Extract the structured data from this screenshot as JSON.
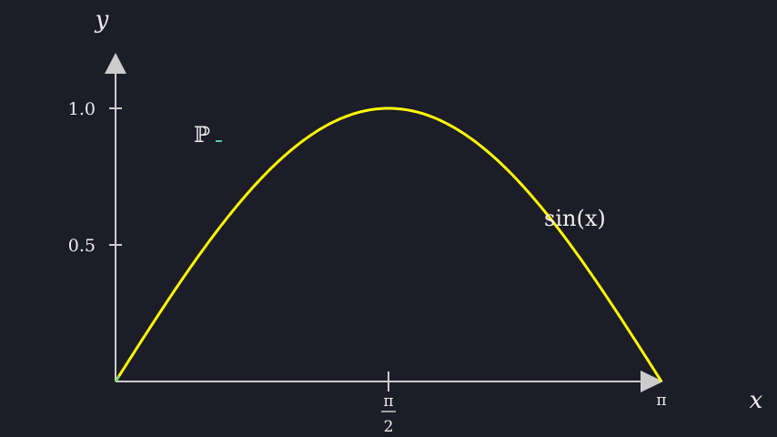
{
  "chart_data": {
    "type": "line",
    "title": "",
    "xlabel": "x",
    "ylabel": "y",
    "xlim": [
      0,
      3.14159
    ],
    "ylim": [
      0,
      1.2
    ],
    "grid": false,
    "background_color": "#1c1d28",
    "axis_color": "#cccccc",
    "x_ticks": [
      {
        "value": 1.5708,
        "numerator": "π",
        "denominator": "2"
      },
      {
        "value": 3.14159,
        "label": "π"
      }
    ],
    "y_ticks": [
      {
        "value": 0.5,
        "label": "0.5"
      },
      {
        "value": 1.0,
        "label": "1.0"
      }
    ],
    "series": [
      {
        "name": "sin(x)",
        "color": "#ffff00",
        "x": [
          0,
          0.3927,
          0.7854,
          1.1781,
          1.5708,
          1.9635,
          2.3562,
          2.7489,
          3.14159
        ],
        "y": [
          0,
          0.3827,
          0.7071,
          0.9239,
          1.0,
          0.9239,
          0.7071,
          0.3827,
          0
        ]
      }
    ],
    "annotations": [
      {
        "text": "ℙ",
        "color": "#5cc8b0"
      }
    ]
  }
}
